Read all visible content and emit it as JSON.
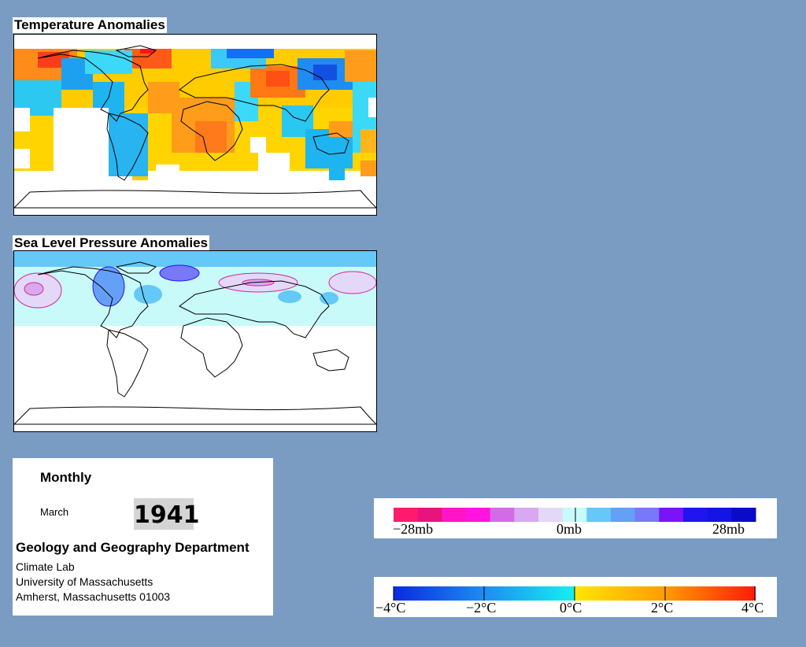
{
  "panels": {
    "temperature_title": "Temperature Anomalies",
    "pressure_title": "Sea Level Pressure Anomalies"
  },
  "info": {
    "frequency": "Monthly",
    "month": "March",
    "year": "1941",
    "department": "Geology and Geography Department",
    "lab": "Climate Lab",
    "university": "University of Massachusetts",
    "address": "Amherst, Massachusetts 01003"
  },
  "pressure_legend": {
    "labels": [
      "−28mb",
      "0mb",
      "28mb"
    ],
    "colors": [
      "#ff1a6e",
      "#e8147c",
      "#ff14c8",
      "#ff14e0",
      "#d46ae8",
      "#d8a8f0",
      "#e4d8f8",
      "#c8fafa",
      "#64c8f8",
      "#64a0f8",
      "#7878f8",
      "#7a14f8",
      "#2014f0",
      "#1414e4",
      "#0a0ac8"
    ]
  },
  "temperature_legend": {
    "labels": [
      "−4°C",
      "−2°C",
      "0°C",
      "2°C",
      "4°C"
    ]
  }
}
